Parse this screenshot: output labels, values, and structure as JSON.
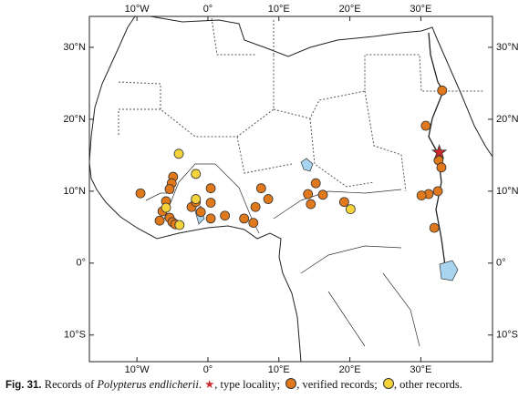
{
  "map": {
    "xlim": [
      -16.7,
      40.1
    ],
    "ylim": [
      -13.7,
      34.3
    ],
    "xticks": [
      {
        "value": -10,
        "label": "10°W"
      },
      {
        "value": 0,
        "label": "0°"
      },
      {
        "value": 10,
        "label": "10°E"
      },
      {
        "value": 20,
        "label": "20°E"
      },
      {
        "value": 30,
        "label": "30°E"
      }
    ],
    "yticks": [
      {
        "value": 30,
        "label": "30°N"
      },
      {
        "value": 20,
        "label": "20°N"
      },
      {
        "value": 10,
        "label": "10°N"
      },
      {
        "value": 0,
        "label": "0°"
      },
      {
        "value": -10,
        "label": "10°S"
      }
    ],
    "type_locality": {
      "color": "#c8282b",
      "lon": [
        32.6
      ],
      "lat": [
        15.4
      ]
    },
    "verified": {
      "color": "#e0781c",
      "lon": [
        33.0,
        30.7,
        32.5,
        32.9,
        32.4,
        31.1,
        30.1,
        31.9,
        -9.5,
        -4.9,
        -5.1,
        -5.4,
        -5.9,
        -6.4,
        -6.8,
        -5.4,
        -5.0,
        -4.6,
        -2.3,
        -1.7,
        -1.0,
        0.4,
        0.4,
        0.4,
        2.4,
        5.1,
        6.7,
        6.4,
        7.5,
        8.5,
        14.1,
        15.2,
        14.5,
        16.2,
        19.2
      ],
      "lat": [
        24.0,
        19.1,
        14.3,
        13.3,
        10.0,
        9.6,
        9.4,
        4.9,
        9.7,
        12.0,
        11.1,
        10.3,
        8.6,
        7.2,
        5.9,
        6.3,
        5.7,
        5.4,
        7.8,
        8.5,
        7.1,
        10.4,
        8.4,
        6.2,
        6.6,
        6.2,
        7.8,
        5.6,
        10.4,
        8.9,
        9.6,
        11.1,
        8.2,
        9.5,
        8.5
      ]
    },
    "other": {
      "color": "#f4d43a",
      "lon": [
        -4.1,
        -1.7,
        -1.7,
        -5.9,
        -4.0,
        20.1
      ],
      "lat": [
        15.2,
        12.4,
        8.9,
        7.7,
        5.3,
        7.5
      ]
    }
  },
  "caption": {
    "label": "Fig. 31.",
    "text": "Records of",
    "species": "Polypterus endlicherii",
    "after": ".",
    "type_text": ", type locality;",
    "verified_text": ", verified records;",
    "other_text": ", other records."
  }
}
